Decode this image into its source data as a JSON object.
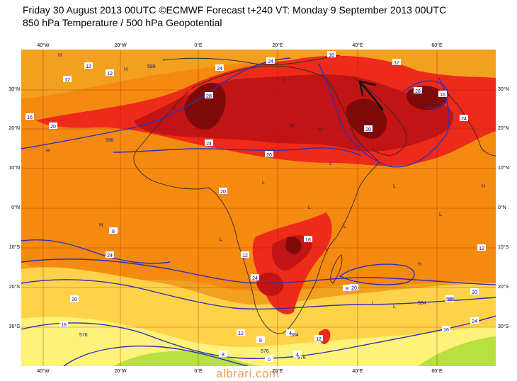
{
  "header": {
    "line1": "Friday 30 August 2013 00UTC ©ECMWF Forecast t+240 VT: Monday 9 September 2013 00UTC",
    "line2": "850 hPa Temperature / 500 hPa Geopotential"
  },
  "map": {
    "lon_labels_top": [
      "40°W",
      "20°W",
      "0°E",
      "20°E",
      "40°E",
      "60°E"
    ],
    "lon_labels_bottom": [
      "40°W",
      "20°W",
      "0°E",
      "20°E",
      "40°E",
      "60°E"
    ],
    "lat_labels": [
      "30°N",
      "20°N",
      "10°N",
      "0°N",
      "10°S",
      "20°S",
      "30°S"
    ],
    "temperature_labels": [
      "12",
      "12",
      "12",
      "16",
      "20",
      "24",
      "28",
      "24",
      "20",
      "24",
      "20",
      "16",
      "12",
      "16",
      "28",
      "24",
      "20",
      "16",
      "12",
      "24",
      "28",
      "24",
      "20",
      "16",
      "12",
      "8",
      "8",
      "4",
      "0",
      "4",
      "8",
      "12",
      "16",
      "20",
      "24",
      "20",
      "16",
      "12",
      "8"
    ],
    "geopotential_labels": [
      "588",
      "588",
      "588",
      "576",
      "576",
      "576",
      "584",
      "584"
    ],
    "pressure_markers": [
      "H",
      "H",
      "H",
      "H",
      "H",
      "H",
      "H",
      "H",
      "L",
      "L",
      "L",
      "L",
      "L",
      "L",
      "L",
      "L",
      "L",
      "L",
      "L",
      "L"
    ],
    "colors": {
      "ocean_bg": "#f2a020",
      "warm_orange": "#f58a10",
      "hot_red": "#ee2a1a",
      "very_hot": "#c21414",
      "extreme": "#7e0a0a",
      "cool_yellow": "#ffd24a",
      "pale_yellow": "#fff27a",
      "green": "#b8e040",
      "contour_blue": "#2f2fb8",
      "coast_black": "#2a2a2a"
    }
  },
  "watermark": "albrari.com"
}
